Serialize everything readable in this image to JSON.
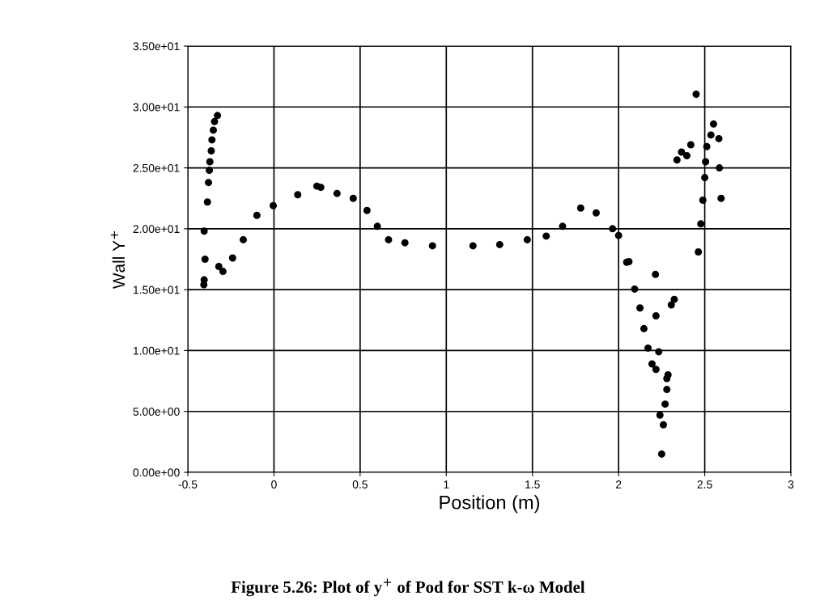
{
  "chart_data": {
    "type": "scatter",
    "xlabel": "Position (m)",
    "ylabel": "Wall Y$^{+}$",
    "annotations": [
      "Figure 5.26: Plot of y$^{+}$ of Pod for SST k-ω Model"
    ],
    "series": [
      {
        "color": "#000000",
        "x": [
          -0.407,
          -0.405,
          -0.4,
          -0.405,
          -0.386,
          -0.38,
          -0.375,
          -0.372,
          -0.364,
          -0.36,
          -0.352,
          -0.345,
          -0.328,
          -0.32,
          -0.296,
          -0.24,
          -0.178,
          -0.099,
          -0.004,
          0.138,
          0.249,
          0.272,
          0.366,
          0.46,
          0.54,
          0.6,
          0.665,
          0.76,
          0.92,
          1.155,
          1.31,
          1.47,
          1.58,
          1.675,
          1.78,
          1.87,
          1.965,
          2.0,
          2.047,
          2.06,
          2.093,
          2.124,
          2.147,
          2.171,
          2.194,
          2.217,
          2.233,
          2.45,
          2.551,
          2.536,
          2.582,
          2.512,
          2.419,
          2.365,
          2.396,
          2.339,
          2.505,
          2.585,
          2.5,
          2.489,
          2.595,
          2.477,
          2.463,
          2.214,
          2.323,
          2.306,
          2.217,
          2.287,
          2.28,
          2.28,
          2.24,
          2.26,
          2.27,
          2.25
        ],
        "values": [
          15.4,
          15.8,
          17.5,
          19.8,
          22.2,
          23.8,
          24.8,
          25.5,
          26.4,
          27.3,
          28.1,
          28.8,
          29.3,
          16.9,
          16.5,
          17.6,
          19.1,
          21.1,
          21.9,
          22.8,
          23.5,
          23.4,
          22.9,
          22.5,
          21.5,
          20.2,
          19.1,
          18.85,
          18.6,
          18.6,
          18.7,
          19.1,
          19.4,
          20.2,
          21.7,
          21.3,
          20.0,
          19.45,
          17.25,
          17.3,
          15.05,
          13.5,
          11.8,
          10.2,
          8.9,
          8.45,
          9.9,
          31.05,
          28.6,
          27.7,
          27.4,
          26.75,
          26.9,
          26.3,
          26.0,
          25.65,
          25.5,
          25.0,
          24.2,
          22.35,
          22.5,
          20.4,
          18.1,
          16.25,
          14.2,
          13.75,
          12.85,
          8.0,
          7.7,
          6.8,
          4.7,
          3.9,
          5.6,
          1.5
        ]
      }
    ],
    "xlim": [
      -0.5,
      3
    ],
    "xticks": [
      -0.5,
      0,
      0.5,
      1,
      1.5,
      2,
      2.5,
      3
    ],
    "ylim": [
      0,
      35
    ],
    "yticks": [
      {
        "value": 0,
        "label": "0.00e+00"
      },
      {
        "value": 5,
        "label": "5.00e+00"
      },
      {
        "value": 10,
        "label": "1.00e+01"
      },
      {
        "value": 15,
        "label": "1.50e+01"
      },
      {
        "value": 20,
        "label": "2.00e+01"
      },
      {
        "value": 25,
        "label": "2.50e+01"
      },
      {
        "value": 30,
        "label": "3.00e+01"
      },
      {
        "value": 35,
        "label": "3.50e+01"
      }
    ],
    "grid": true,
    "marker": "circle"
  }
}
